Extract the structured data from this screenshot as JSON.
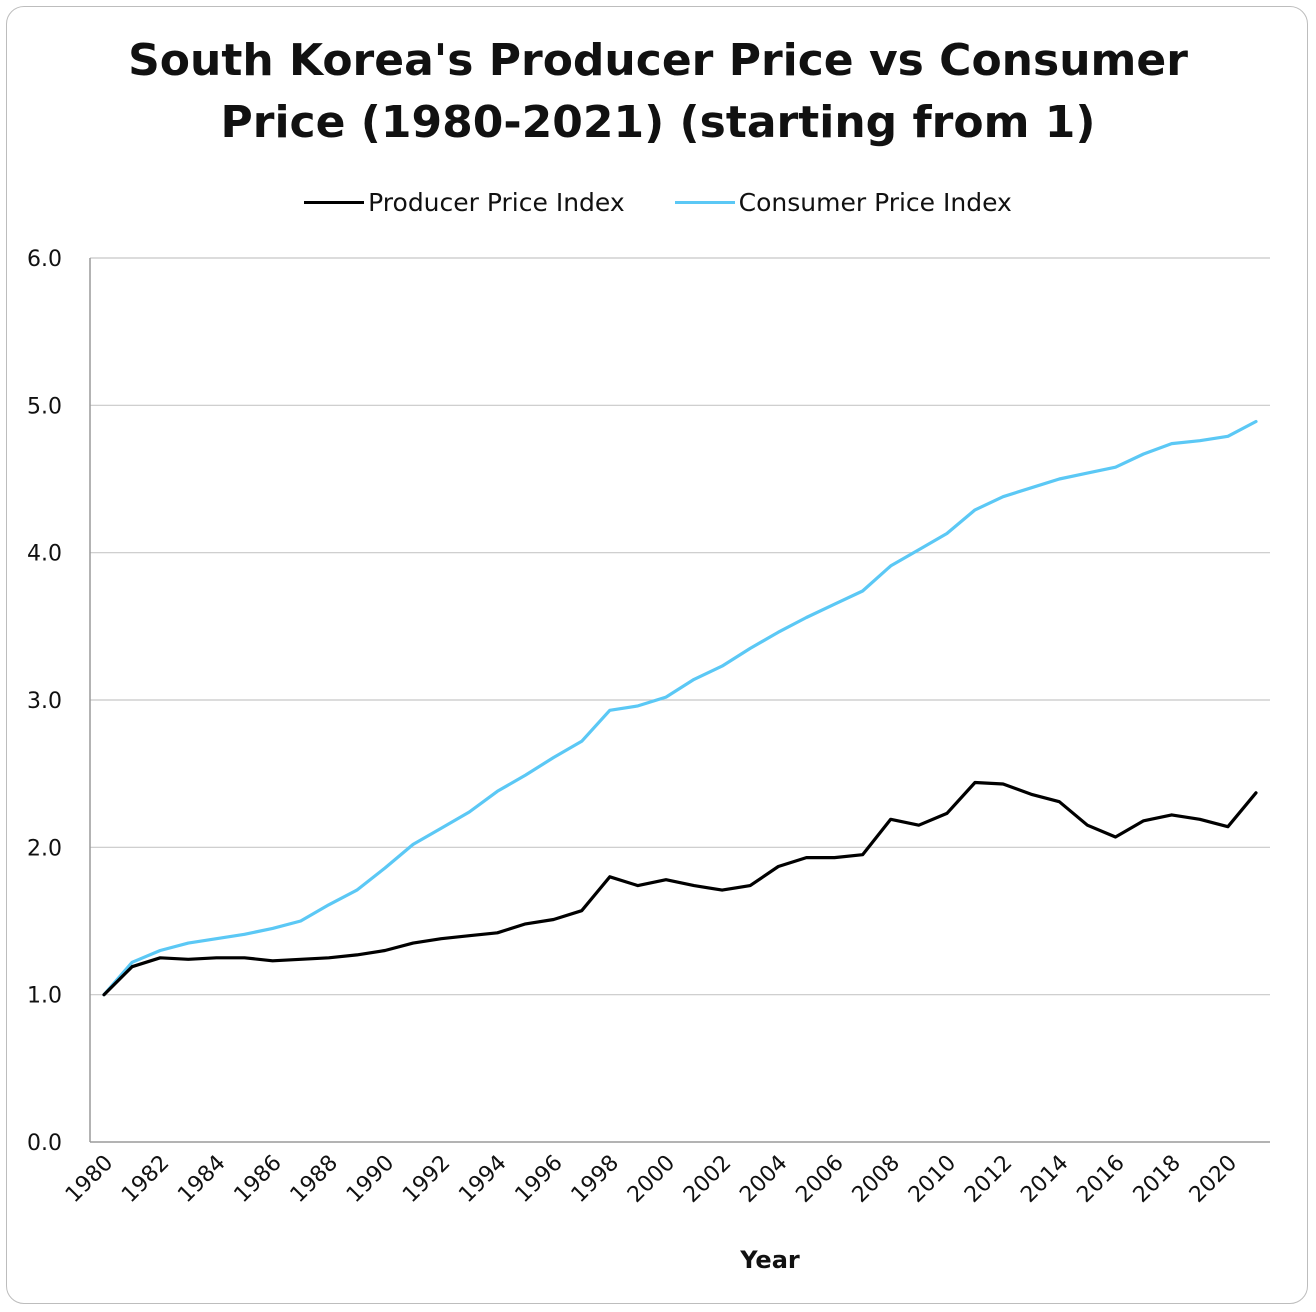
{
  "chart_data": {
    "type": "line",
    "title_lines": [
      "South Korea's Producer Price vs Consumer",
      "Price (1980-2021) (starting from 1)"
    ],
    "xlabel": "Year",
    "ylabel": "",
    "ylim": [
      0,
      6
    ],
    "yticks": [
      "0.0",
      "1.0",
      "2.0",
      "3.0",
      "4.0",
      "5.0",
      "6.0"
    ],
    "xtick_labels": [
      "1980",
      "1982",
      "1984",
      "1986",
      "1988",
      "1990",
      "1992",
      "1994",
      "1996",
      "1998",
      "2000",
      "2002",
      "2004",
      "2006",
      "2008",
      "2010",
      "2012",
      "2014",
      "2016",
      "2018",
      "2020"
    ],
    "grid": true,
    "legend_position": "top-center",
    "x": [
      1980,
      1981,
      1982,
      1983,
      1984,
      1985,
      1986,
      1987,
      1988,
      1989,
      1990,
      1991,
      1992,
      1993,
      1994,
      1995,
      1996,
      1997,
      1998,
      1999,
      2000,
      2001,
      2002,
      2003,
      2004,
      2005,
      2006,
      2007,
      2008,
      2009,
      2010,
      2011,
      2012,
      2013,
      2014,
      2015,
      2016,
      2017,
      2018,
      2019,
      2020,
      2021
    ],
    "series": [
      {
        "name": "Producer Price Index",
        "color": "#000000",
        "values": [
          1.0,
          1.19,
          1.25,
          1.24,
          1.25,
          1.25,
          1.23,
          1.24,
          1.25,
          1.27,
          1.3,
          1.35,
          1.38,
          1.4,
          1.42,
          1.48,
          1.51,
          1.57,
          1.8,
          1.74,
          1.78,
          1.74,
          1.71,
          1.74,
          1.87,
          1.93,
          1.93,
          1.95,
          2.19,
          2.15,
          2.23,
          2.44,
          2.43,
          2.36,
          2.31,
          2.15,
          2.07,
          2.18,
          2.22,
          2.19,
          2.14,
          2.37
        ]
      },
      {
        "name": "Consumer Price Index",
        "color": "#5bc8f5",
        "values": [
          1.0,
          1.22,
          1.3,
          1.35,
          1.38,
          1.41,
          1.45,
          1.5,
          1.61,
          1.71,
          1.86,
          2.02,
          2.13,
          2.24,
          2.38,
          2.49,
          2.61,
          2.72,
          2.93,
          2.96,
          3.02,
          3.14,
          3.23,
          3.35,
          3.46,
          3.56,
          3.65,
          3.74,
          3.91,
          4.02,
          4.13,
          4.29,
          4.38,
          4.44,
          4.5,
          4.54,
          4.58,
          4.67,
          4.74,
          4.76,
          4.79,
          4.89
        ]
      }
    ]
  }
}
